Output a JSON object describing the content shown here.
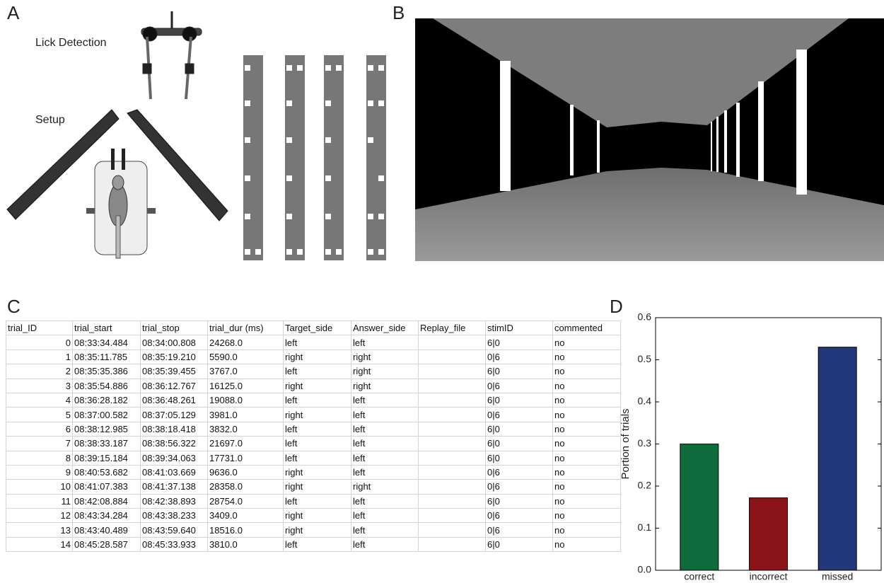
{
  "panels": {
    "a": "A",
    "b": "B",
    "c": "C",
    "d": "D"
  },
  "setup_labels": {
    "lick": "Lick Detection",
    "setup": "Setup"
  },
  "table": {
    "columns": [
      "trial_ID",
      "trial_start",
      "trial_stop",
      "trial_dur (ms)",
      "Target_side",
      "Answer_side",
      "Replay_file",
      "stimID",
      "commented"
    ],
    "rows": [
      [
        "0",
        "08:33:34.484",
        "08:34:00.808",
        "24268.0",
        "left",
        "left",
        null,
        "6|0",
        "no"
      ],
      [
        "1",
        "08:35:11.785",
        "08:35:19.210",
        "5590.0",
        "right",
        "right",
        null,
        "0|6",
        "no"
      ],
      [
        "2",
        "08:35:35.386",
        "08:35:39.455",
        "3767.0",
        "left",
        "right",
        null,
        "6|0",
        "no"
      ],
      [
        "3",
        "08:35:54.886",
        "08:36:12.767",
        "16125.0",
        "right",
        "right",
        null,
        "0|6",
        "no"
      ],
      [
        "4",
        "08:36:28.182",
        "08:36:48.261",
        "19088.0",
        "left",
        "left",
        null,
        "6|0",
        "no"
      ],
      [
        "5",
        "08:37:00.582",
        "08:37:05.129",
        "3981.0",
        "right",
        "left",
        null,
        "0|6",
        "no"
      ],
      [
        "6",
        "08:38:12.985",
        "08:38:18.418",
        "3832.0",
        "left",
        "left",
        null,
        "6|0",
        "no"
      ],
      [
        "7",
        "08:38:33.187",
        "08:38:56.322",
        "21697.0",
        "left",
        "left",
        null,
        "6|0",
        "no"
      ],
      [
        "8",
        "08:39:15.184",
        "08:39:34.063",
        "17731.0",
        "left",
        "left",
        null,
        "6|0",
        "no"
      ],
      [
        "9",
        "08:40:53.682",
        "08:41:03.669",
        "9636.0",
        "right",
        "left",
        null,
        "0|6",
        "no"
      ],
      [
        "10",
        "08:41:07.383",
        "08:41:37.138",
        "28358.0",
        "right",
        "right",
        null,
        "0|6",
        "no"
      ],
      [
        "11",
        "08:42:08.884",
        "08:42:38.893",
        "28754.0",
        "left",
        "left",
        null,
        "6|0",
        "no"
      ],
      [
        "12",
        "08:43:34.284",
        "08:43:38.233",
        "3409.0",
        "right",
        "left",
        null,
        "0|6",
        "no"
      ],
      [
        "13",
        "08:43:40.489",
        "08:43:59.640",
        "18516.0",
        "right",
        "left",
        null,
        "0|6",
        "no"
      ],
      [
        "14",
        "08:45:28.587",
        "08:45:33.933",
        "3810.0",
        "left",
        "left",
        null,
        "6|0",
        "no"
      ]
    ]
  },
  "chart_data": {
    "type": "bar",
    "categories": [
      "correct",
      "incorrect",
      "missed"
    ],
    "values": [
      0.3,
      0.172,
      0.53
    ],
    "colors": [
      "#0e6b3b",
      "#8a1419",
      "#22387a"
    ],
    "ylabel": "Portion of trials",
    "ylim": [
      0,
      0.6
    ],
    "yticks": [
      {
        "value": 0,
        "label": "0.0"
      },
      0.1,
      0.2,
      0.3,
      0.4,
      0.5,
      0.6
    ]
  }
}
